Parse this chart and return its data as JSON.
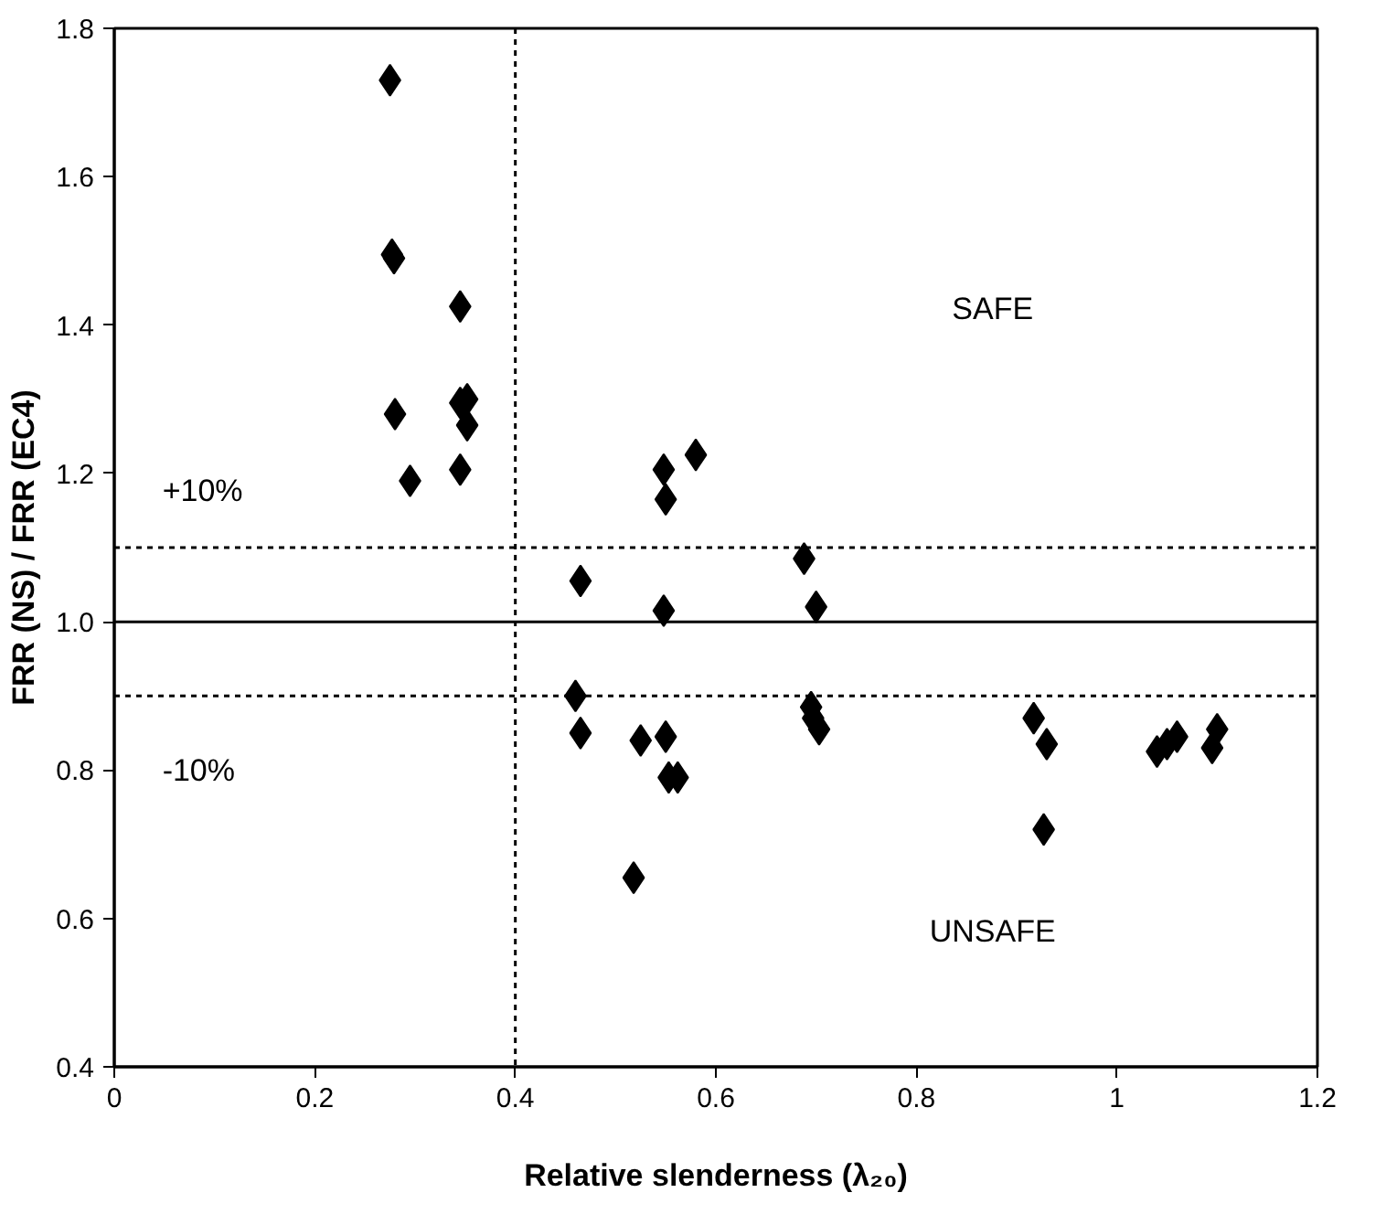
{
  "chart_data": {
    "type": "scatter",
    "xlabel": "Relative slenderness (λ₂₀)",
    "ylabel": "FRR (NS) / FRR (EC4)",
    "xlim": [
      0,
      1.2
    ],
    "xticks": [
      0,
      0.2,
      0.4,
      0.6,
      0.8,
      1,
      1.2
    ],
    "ylim": [
      0.4,
      1.8
    ],
    "yticks": [
      0.4,
      0.6,
      0.8,
      {
        "value": 1.0,
        "label": "1.0"
      },
      1.2,
      1.4,
      1.6,
      1.8
    ],
    "grid": false,
    "marker": "diamond",
    "series": [
      {
        "color": "#000000",
        "x": [
          0.275,
          0.277,
          0.279,
          0.28,
          0.295,
          0.345,
          0.345,
          0.352,
          0.352,
          0.345,
          0.548,
          0.55,
          0.58,
          0.465,
          0.548,
          0.688,
          0.7,
          0.46,
          0.465,
          0.525,
          0.55,
          0.553,
          0.562,
          0.518,
          0.695,
          0.697,
          0.703,
          0.917,
          0.93,
          0.927,
          1.04,
          1.05,
          1.06,
          1.095,
          1.1
        ],
        "values": [
          1.73,
          1.495,
          1.49,
          1.28,
          1.19,
          1.425,
          1.295,
          1.3,
          1.265,
          1.205,
          1.205,
          1.165,
          1.225,
          1.055,
          1.015,
          1.085,
          1.02,
          0.9,
          0.85,
          0.84,
          0.845,
          0.79,
          0.79,
          0.655,
          0.885,
          0.87,
          0.855,
          0.87,
          0.835,
          0.72,
          0.825,
          0.835,
          0.845,
          0.83,
          0.855
        ]
      }
    ],
    "ref_lines": [
      {
        "axis": "x",
        "value": 0.4,
        "line_style": "dotted"
      },
      {
        "axis": "y",
        "value": 1.1,
        "line_style": "dotted"
      },
      {
        "axis": "y",
        "value": 1.0,
        "line_style": "solid"
      },
      {
        "axis": "y",
        "value": 0.9,
        "line_style": "dotted"
      }
    ],
    "annotations": [
      "+10%",
      "-10%",
      "SAFE",
      "UNSAFE"
    ]
  }
}
